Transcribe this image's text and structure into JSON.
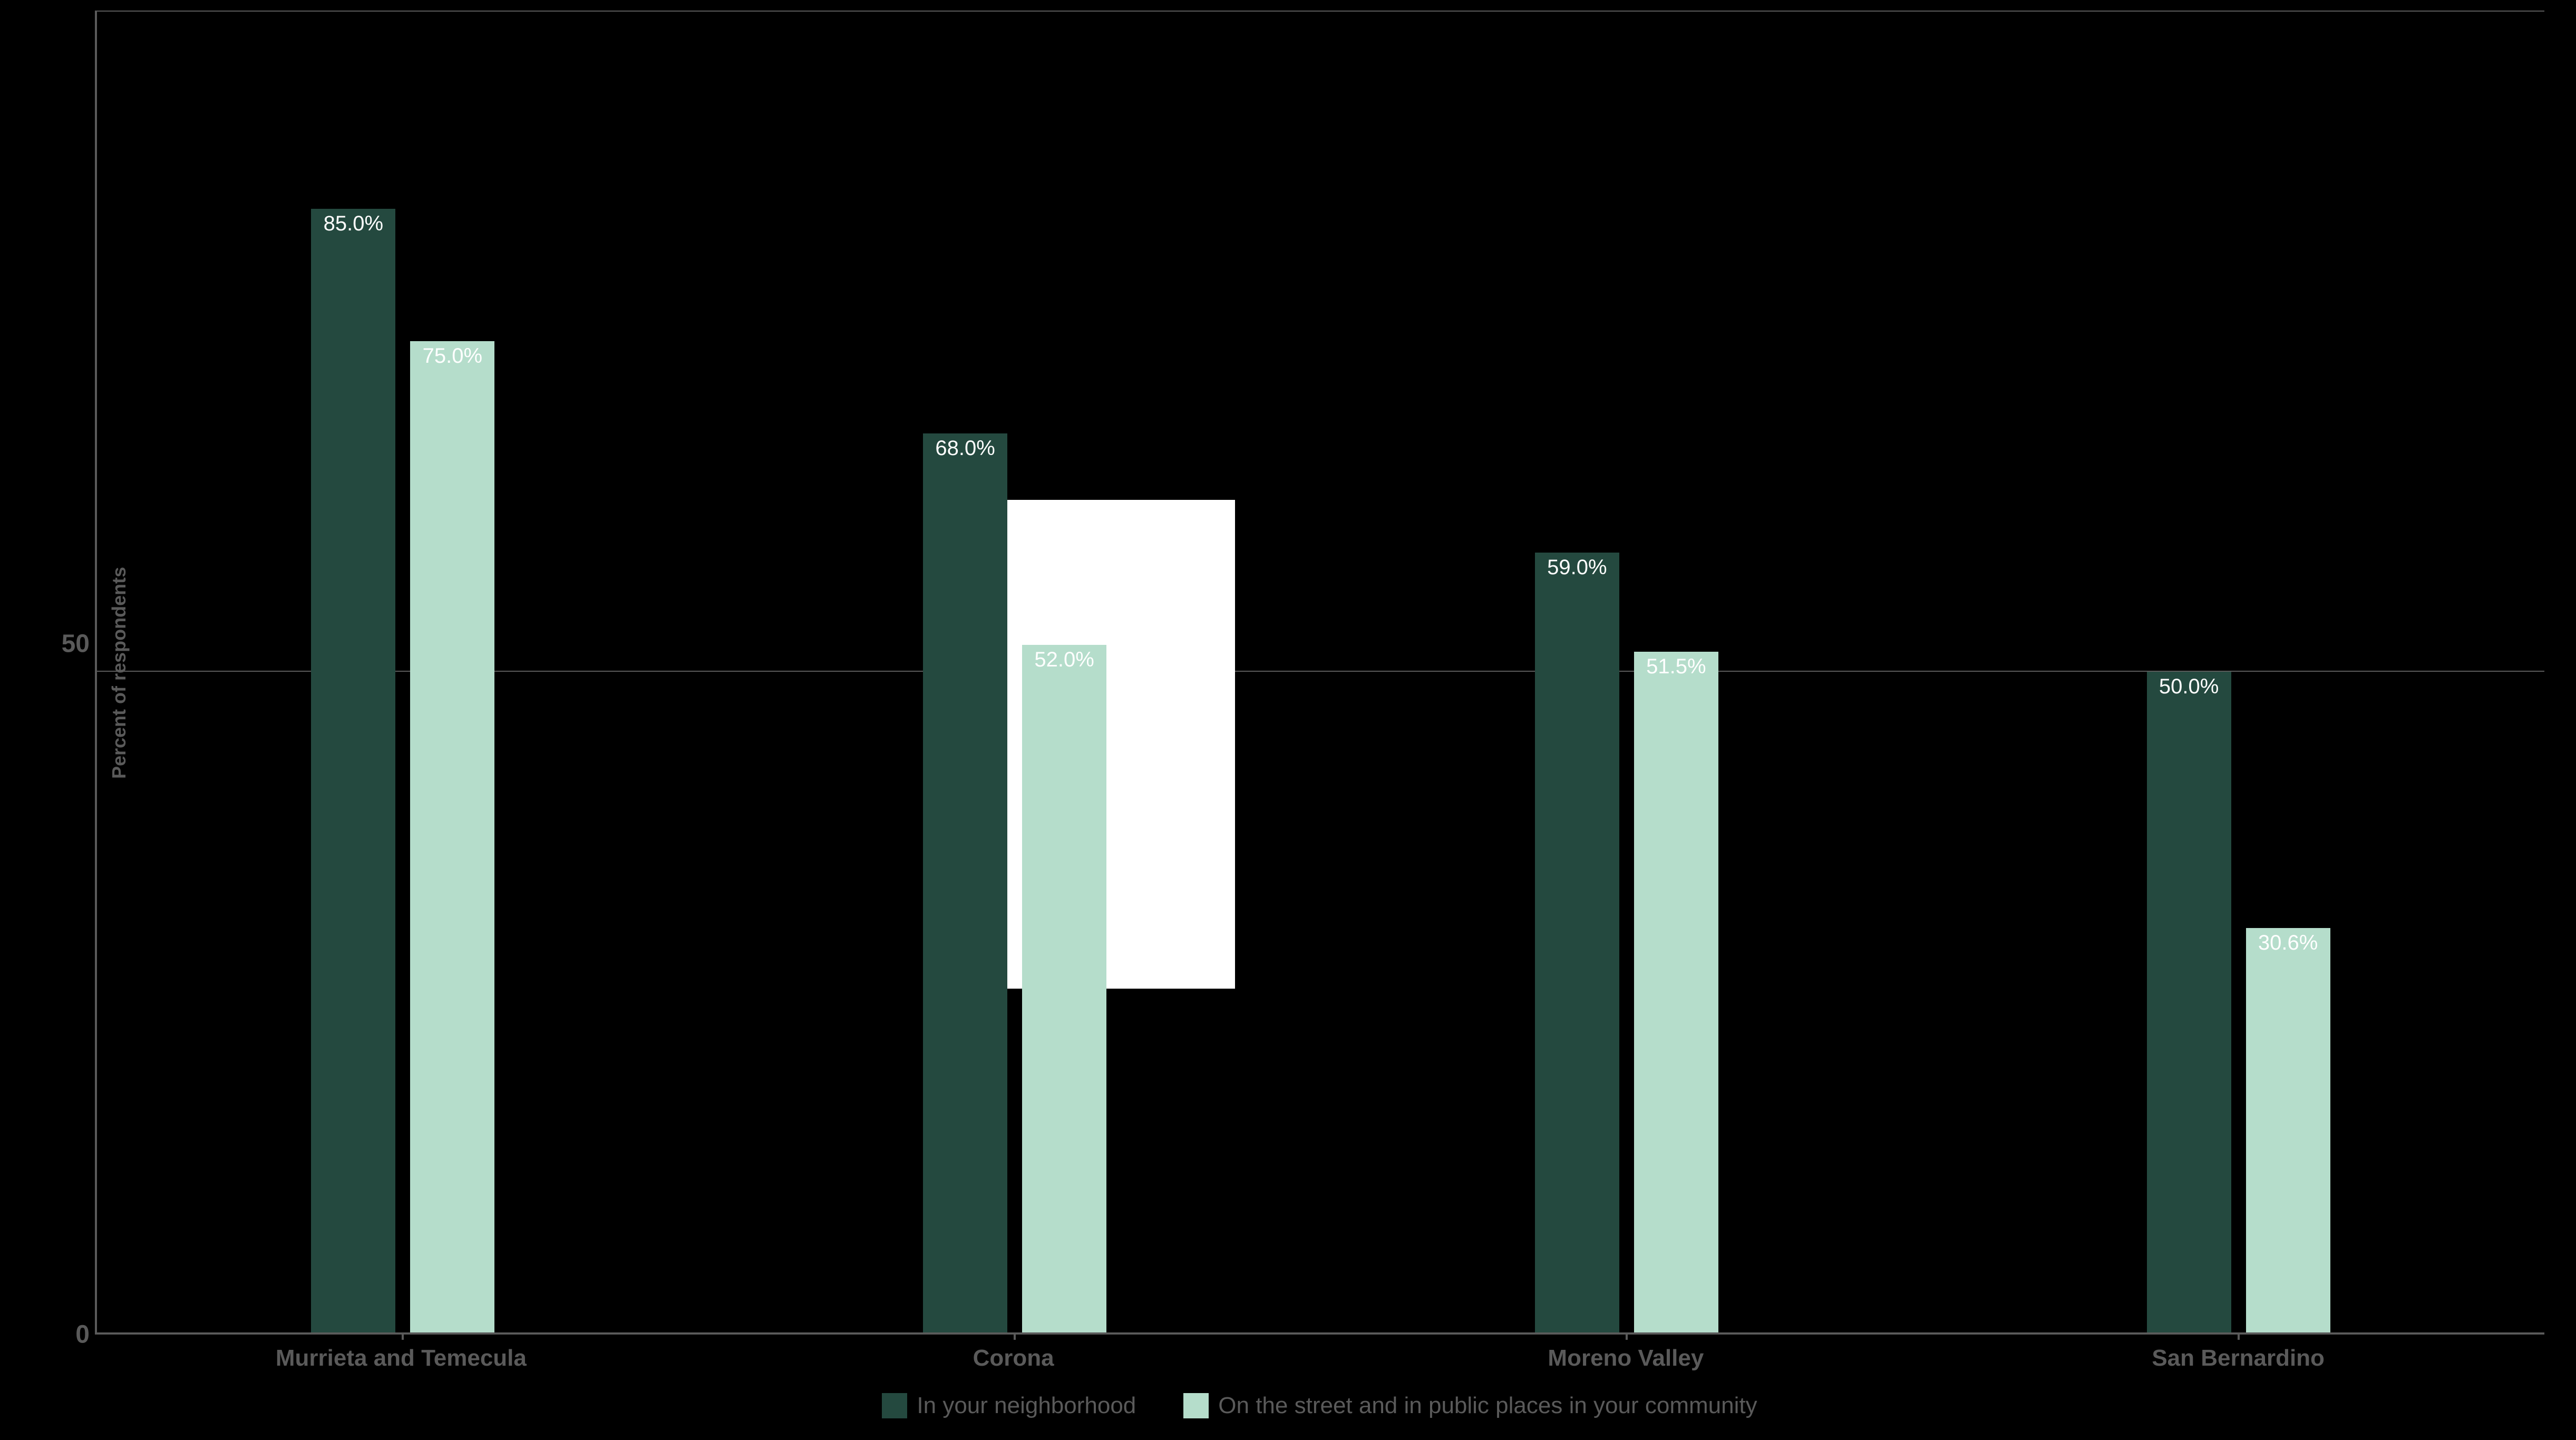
{
  "chart": {
    "type": "bar",
    "background_color": "#000000",
    "axis_color": "#5a5a5a",
    "text_color": "#5a5a5a",
    "bar_label_color": "#ffffff",
    "ylabel": "Percent of respondents",
    "ylabel_fontsize": 36,
    "ylim": [
      0,
      100
    ],
    "yticks": [
      0,
      50,
      100
    ],
    "gridlines": [
      50,
      100
    ],
    "tick_fontsize": 48,
    "category_fontsize": 44,
    "legend_fontsize": 44,
    "bar_label_fontsize": 40,
    "categories": [
      "Murrieta and Temecula",
      "Corona",
      "Moreno Valley",
      "San Bernardino"
    ],
    "series": [
      {
        "name": "In your neighborhood",
        "color": "#24493f",
        "values": [
          85.0,
          68.0,
          59.0,
          50.0
        ],
        "labels": [
          "85.0%",
          "68.0%",
          "59.0%",
          "50.0%"
        ]
      },
      {
        "name": "On the street and in public places in your community",
        "color": "#b5ddcb",
        "values": [
          75.0,
          52.0,
          51.5,
          30.6
        ],
        "labels": [
          "75.0%",
          "52.0%",
          "51.5%",
          "30.6%"
        ]
      }
    ],
    "overlay_block_color": "#ffffff"
  }
}
